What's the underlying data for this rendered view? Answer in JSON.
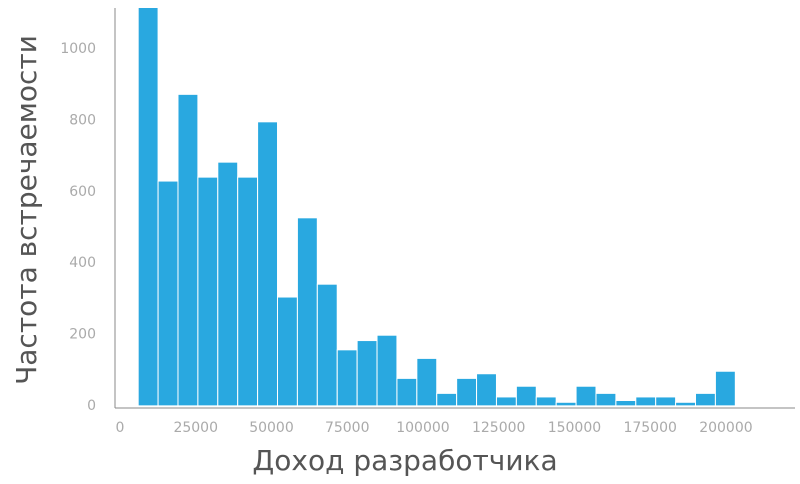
{
  "chart_data": {
    "type": "histogram",
    "x_label": "Доход разработчика",
    "y_label": "Частота встречаемости",
    "bins": [
      6000,
      12570,
      19140,
      25710,
      32280,
      38850,
      45420,
      51990,
      58560,
      65130,
      71700,
      78270,
      84840,
      91410,
      97980,
      104550,
      111120,
      117690,
      124260,
      130830,
      137400,
      143970,
      150540,
      157110,
      163680,
      170250,
      176820,
      183390,
      189960,
      196530,
      203100
    ],
    "values": [
      1120,
      630,
      873,
      641,
      683,
      641,
      796,
      305,
      527,
      341,
      157,
      183,
      198,
      77,
      133,
      35,
      77,
      90,
      25,
      55,
      25,
      10,
      55,
      35,
      15,
      25,
      25,
      10,
      35,
      97
    ],
    "color": "#29a8e0",
    "xlim": [
      -1650,
      222800
    ],
    "xticks": [
      0,
      25000,
      50000,
      75000,
      100000,
      125000,
      150000,
      175000,
      200000
    ],
    "ylim": [
      -6,
      1115
    ],
    "yticks": [
      0,
      200,
      400,
      600,
      800,
      1000
    ]
  }
}
